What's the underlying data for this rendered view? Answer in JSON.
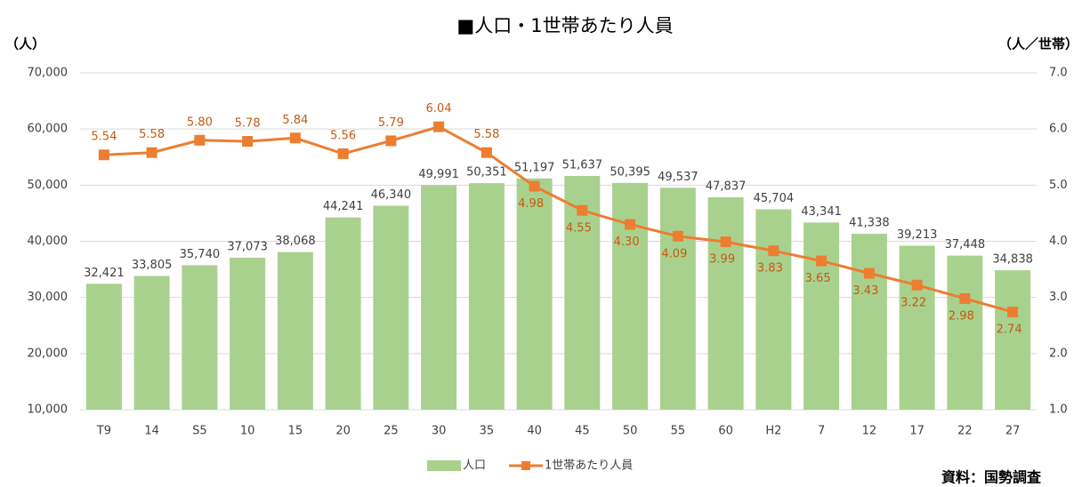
{
  "chart_data": {
    "type": "bar",
    "title": "■人口・1世帯あたり人員",
    "y_label": "（人）",
    "y2_label": "（人／世帯）",
    "source": "資料：国勢調査",
    "categories": [
      "T9",
      "14",
      "S5",
      "10",
      "15",
      "20",
      "25",
      "30",
      "35",
      "40",
      "45",
      "50",
      "55",
      "60",
      "H2",
      "7",
      "12",
      "17",
      "22",
      "27"
    ],
    "series": [
      {
        "name": "人口",
        "type": "bar",
        "color": "#a9d18e",
        "values": [
          32421,
          33805,
          35740,
          37073,
          38068,
          44241,
          46340,
          49991,
          50351,
          51197,
          51637,
          50395,
          49537,
          47837,
          45704,
          43341,
          41338,
          39213,
          37448,
          34838
        ],
        "value_labels": [
          "32,421",
          "33,805",
          "35,740",
          "37,073",
          "38,068",
          "44,241",
          "46,340",
          "49,991",
          "50,351",
          "51,197",
          "51,637",
          "50,395",
          "49,537",
          "47,837",
          "45,704",
          "43,341",
          "41,338",
          "39,213",
          "37,448",
          "34,838"
        ]
      },
      {
        "name": "1世帯あたり人員",
        "type": "line",
        "axis": "y2",
        "color": "#ed7d31",
        "values": [
          5.54,
          5.58,
          5.8,
          5.78,
          5.84,
          5.56,
          5.79,
          6.04,
          5.58,
          4.98,
          4.55,
          4.3,
          4.09,
          3.99,
          3.83,
          3.65,
          3.43,
          3.22,
          2.98,
          2.74
        ],
        "value_labels": [
          "5.54",
          "5.58",
          "5.80",
          "5.78",
          "5.84",
          "5.56",
          "5.79",
          "6.04",
          "5.58",
          "4.98",
          "4.55",
          "4.30",
          "4.09",
          "3.99",
          "3.83",
          "3.65",
          "3.43",
          "3.22",
          "2.98",
          "2.74"
        ]
      }
    ],
    "ylim": [
      10000,
      70000
    ],
    "yticks": [
      {
        "value": 10000,
        "label": "10,000"
      },
      {
        "value": 20000,
        "label": "20,000"
      },
      {
        "value": 30000,
        "label": "30,000"
      },
      {
        "value": 40000,
        "label": "40,000"
      },
      {
        "value": 50000,
        "label": "50,000"
      },
      {
        "value": 60000,
        "label": "60,000"
      },
      {
        "value": 70000,
        "label": "70,000"
      }
    ],
    "y2lim": [
      1,
      7
    ],
    "y2ticks": [
      {
        "value": 1,
        "label": "1.0"
      },
      {
        "value": 2,
        "label": "2.0"
      },
      {
        "value": 3,
        "label": "3.0"
      },
      {
        "value": 4,
        "label": "4.0"
      },
      {
        "value": 5,
        "label": "5.0"
      },
      {
        "value": 6,
        "label": "6.0"
      },
      {
        "value": 7,
        "label": "7.0"
      }
    ],
    "grid": true,
    "legend": "bottom"
  }
}
